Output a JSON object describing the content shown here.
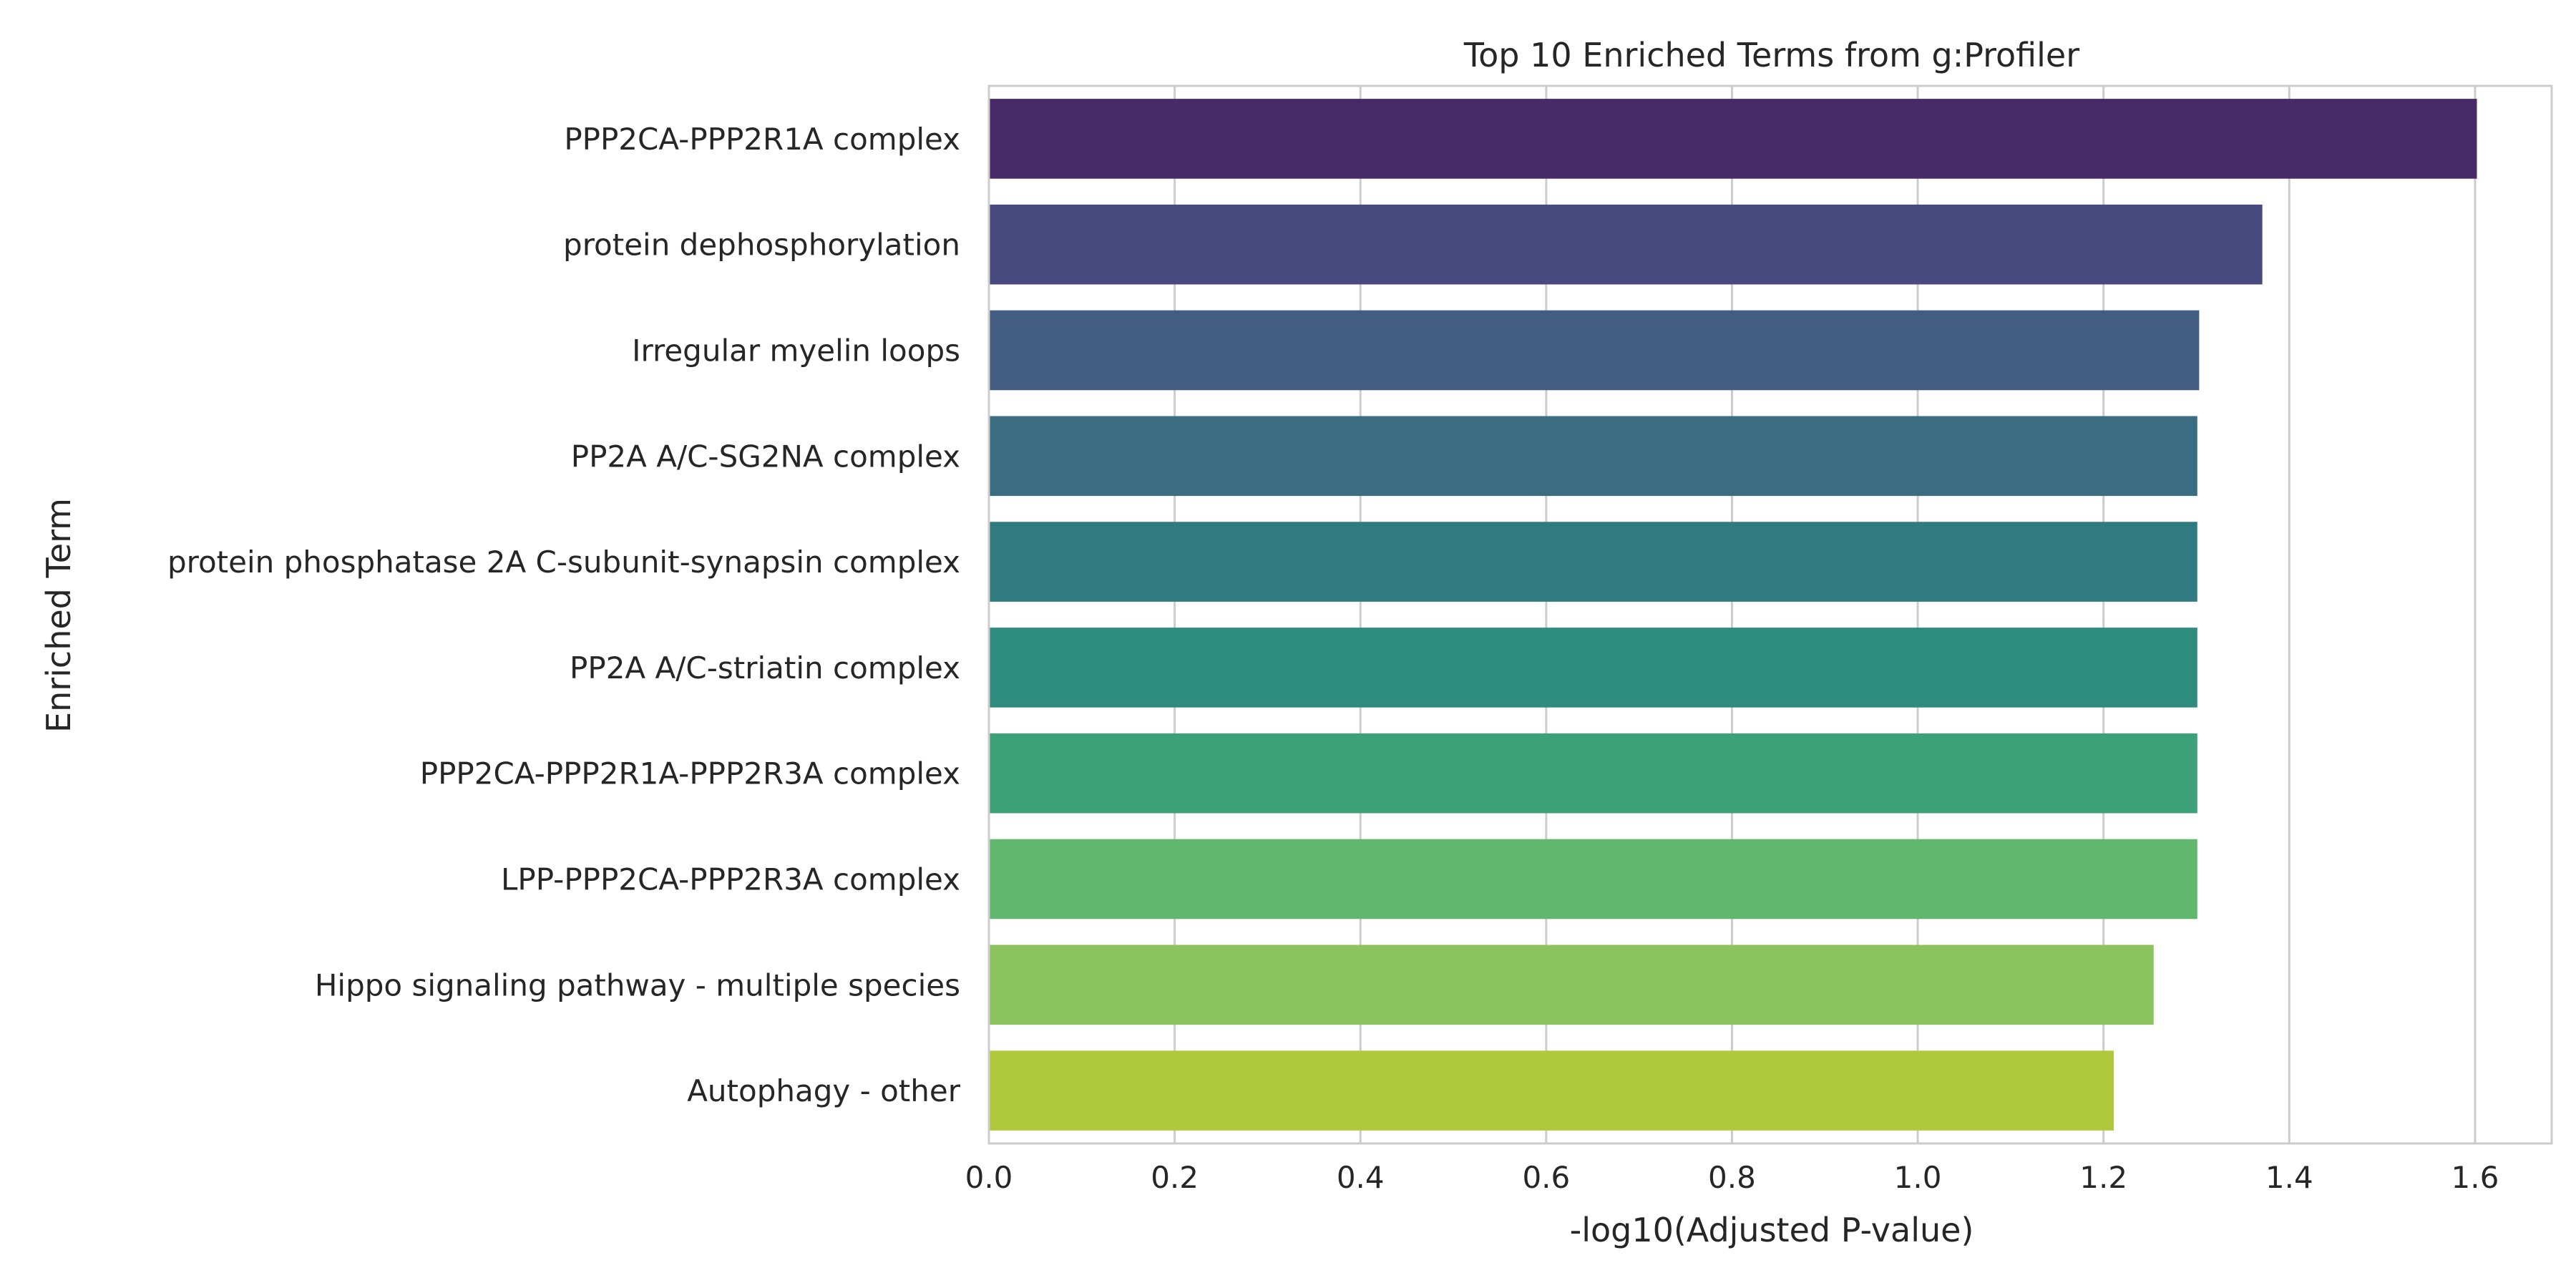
{
  "chart_data": {
    "type": "bar",
    "orientation": "horizontal",
    "title": "Top 10 Enriched Terms from g:Profiler",
    "xlabel": "-log10(Adjusted P-value)",
    "ylabel": "Enriched Term",
    "xlim": [
      0.0,
      1.6825
    ],
    "grid": true,
    "xticks": [
      "0.0",
      "0.2",
      "0.4",
      "0.6",
      "0.8",
      "1.0",
      "1.2",
      "1.4",
      "1.6"
    ],
    "categories": [
      "PPP2CA-PPP2R1A complex",
      "protein dephosphorylation",
      "Irregular myelin loops",
      "PP2A A/C-SG2NA complex",
      "protein phosphatase 2A C-subunit-synapsin complex",
      "PP2A A/C-striatin complex",
      "PPP2CA-PPP2R1A-PPP2R3A complex",
      "LPP-PPP2CA-PPP2R3A complex",
      "Hippo signaling pathway - multiple species",
      "Autophagy - other"
    ],
    "values": [
      1.602,
      1.371,
      1.303,
      1.301,
      1.301,
      1.301,
      1.301,
      1.301,
      1.254,
      1.211
    ],
    "colors": [
      "#482a68",
      "#48497e",
      "#425c82",
      "#3a6d81",
      "#307b80",
      "#2e8c7f",
      "#3ca178",
      "#62b76e",
      "#8bc45c",
      "#b0c93c"
    ]
  }
}
